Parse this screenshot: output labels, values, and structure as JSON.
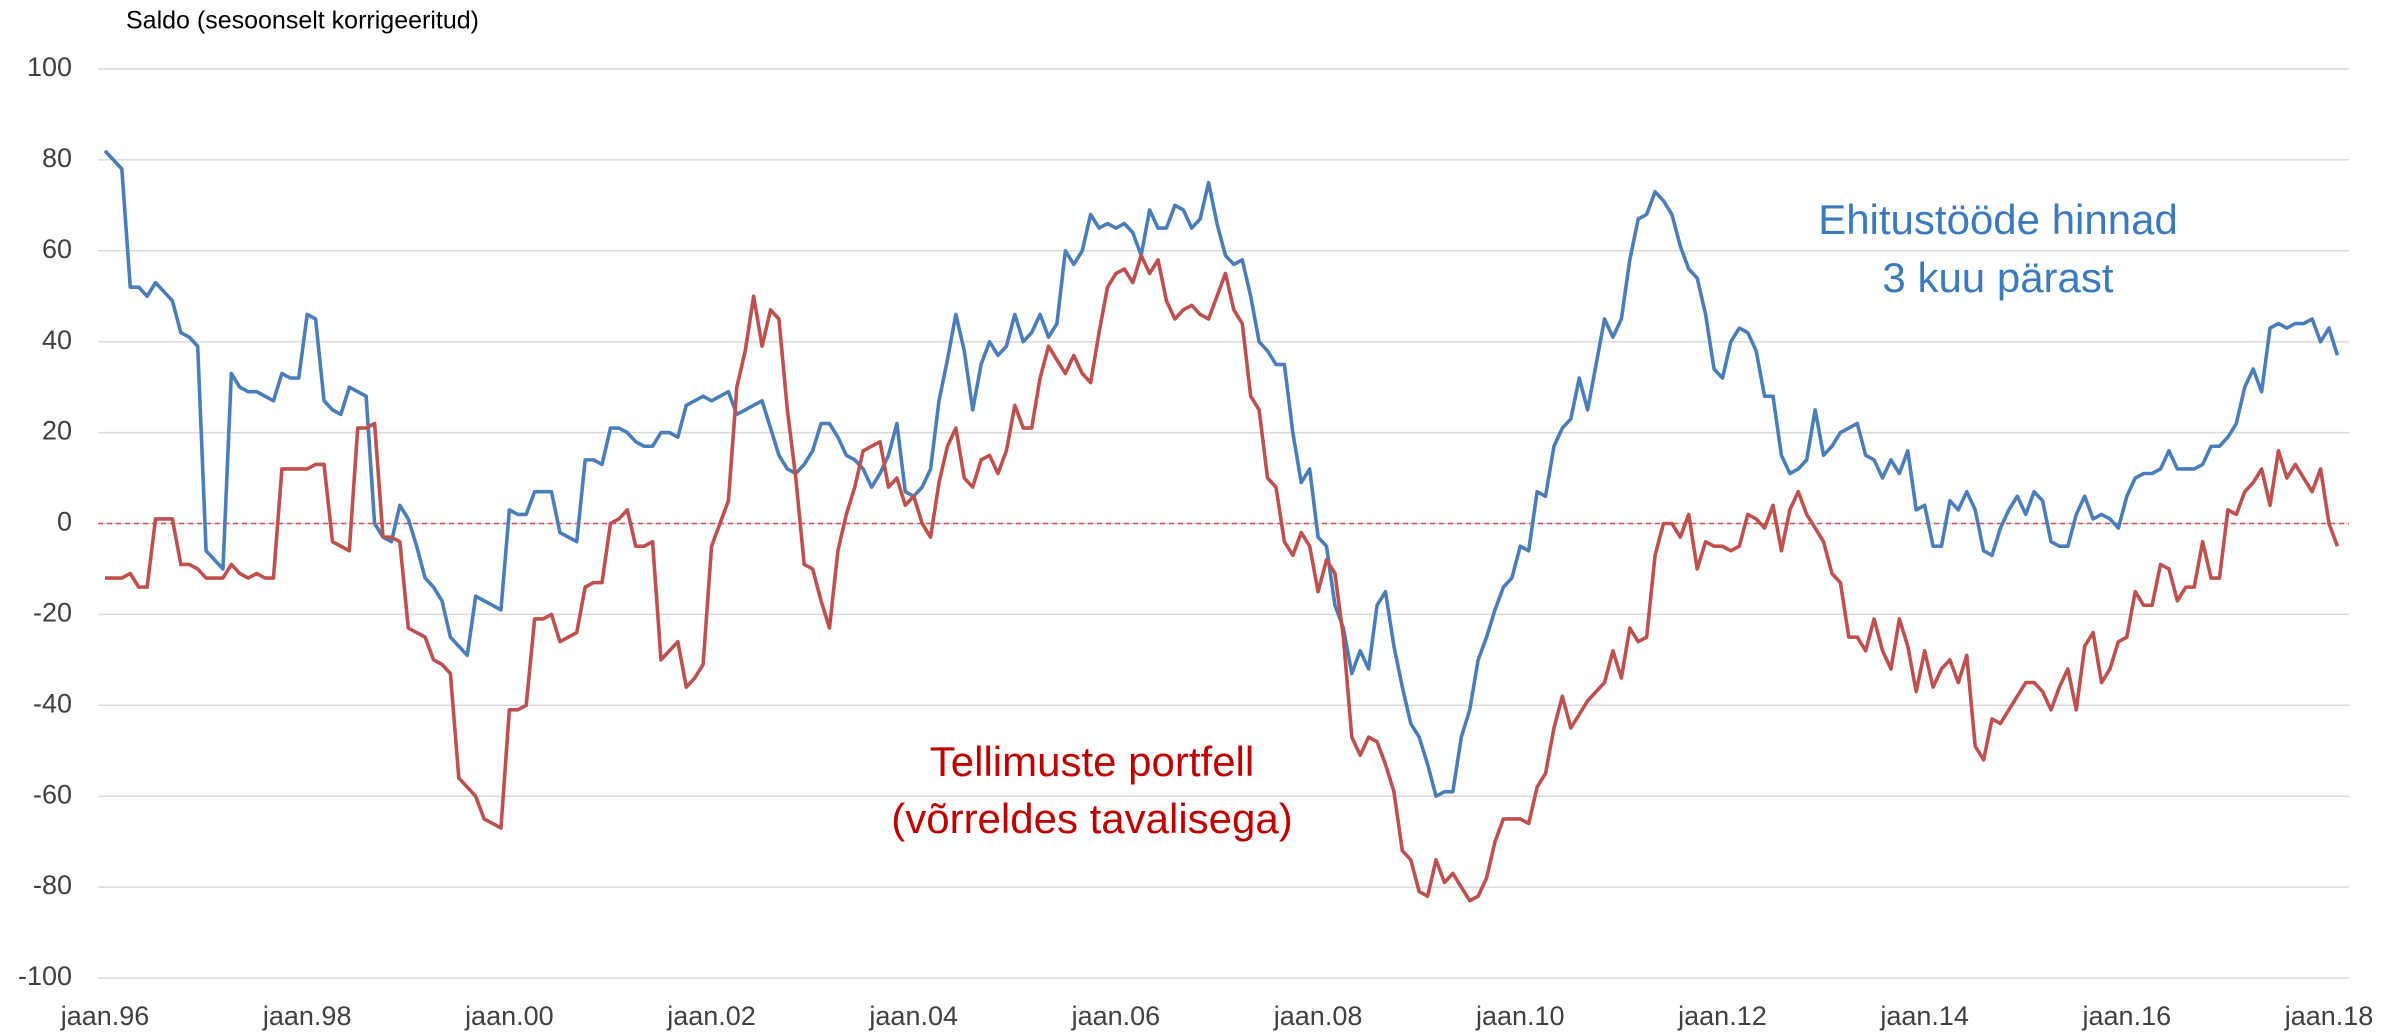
{
  "chart_data": {
    "type": "line",
    "y_label": "Saldo (sesoonselt korrigeeritud)",
    "categories": [
      "jaan.96",
      null,
      null,
      null,
      null,
      null,
      null,
      null,
      null,
      null,
      null,
      null,
      null,
      null,
      null,
      null,
      null,
      null,
      null,
      null,
      null,
      null,
      null,
      null,
      "jaan.98",
      null,
      null,
      null,
      null,
      null,
      null,
      null,
      null,
      null,
      null,
      null,
      null,
      null,
      null,
      null,
      null,
      null,
      null,
      null,
      null,
      null,
      null,
      null,
      "jaan.00",
      null,
      null,
      null,
      null,
      null,
      null,
      null,
      null,
      null,
      null,
      null,
      null,
      null,
      null,
      null,
      null,
      null,
      null,
      null,
      null,
      null,
      null,
      null,
      "jaan.02",
      null,
      null,
      null,
      null,
      null,
      null,
      null,
      null,
      null,
      null,
      null,
      null,
      null,
      null,
      null,
      null,
      null,
      null,
      null,
      null,
      null,
      null,
      null,
      "jaan.04",
      null,
      null,
      null,
      null,
      null,
      null,
      null,
      null,
      null,
      null,
      null,
      null,
      null,
      null,
      null,
      null,
      null,
      null,
      null,
      null,
      null,
      null,
      null,
      "jaan.06",
      null,
      null,
      null,
      null,
      null,
      null,
      null,
      null,
      null,
      null,
      null,
      null,
      null,
      null,
      null,
      null,
      null,
      null,
      null,
      null,
      null,
      null,
      null,
      "jaan.08",
      null,
      null,
      null,
      null,
      null,
      null,
      null,
      null,
      null,
      null,
      null,
      null,
      null,
      null,
      null,
      null,
      null,
      null,
      null,
      null,
      null,
      null,
      null,
      "jaan.10",
      null,
      null,
      null,
      null,
      null,
      null,
      null,
      null,
      null,
      null,
      null,
      null,
      null,
      null,
      null,
      null,
      null,
      null,
      null,
      null,
      null,
      null,
      null,
      "jaan.12",
      null,
      null,
      null,
      null,
      null,
      null,
      null,
      null,
      null,
      null,
      null,
      null,
      null,
      null,
      null,
      null,
      null,
      null,
      null,
      null,
      null,
      null,
      null,
      "jaan.14",
      null,
      null,
      null,
      null,
      null,
      null,
      null,
      null,
      null,
      null,
      null,
      null,
      null,
      null,
      null,
      null,
      null,
      null,
      null,
      null,
      null,
      null,
      null,
      "jaan.16",
      null,
      null,
      null,
      null,
      null,
      null,
      null,
      null,
      null,
      null,
      null,
      null,
      null,
      null,
      null,
      null,
      null,
      null,
      null,
      null,
      null,
      null,
      null,
      "jaan.18",
      null
    ],
    "series": [
      {
        "color": "#4a7ebb",
        "values": [
          82,
          80,
          78,
          52,
          52,
          50,
          53,
          51,
          49,
          42,
          41,
          39,
          -6,
          -8,
          -10,
          33,
          30,
          29,
          29,
          28,
          27,
          33,
          32,
          32,
          46,
          45,
          27,
          25,
          24,
          30,
          29,
          28,
          0,
          -3,
          -4,
          4,
          1,
          -5,
          -12,
          -14,
          -17,
          -25,
          -27,
          -29,
          -16,
          -17,
          -18,
          -19,
          3,
          2,
          2,
          7,
          7,
          7,
          -2,
          -3,
          -4,
          14,
          14,
          13,
          21,
          21,
          20,
          18,
          17,
          17,
          20,
          20,
          19,
          26,
          27,
          28,
          27,
          28,
          29,
          24,
          25,
          26,
          27,
          21,
          15,
          12,
          11,
          13,
          16,
          22,
          22,
          19,
          15,
          14,
          12,
          8,
          11,
          15,
          22,
          7,
          6,
          8,
          12,
          27,
          36,
          46,
          38,
          25,
          35,
          40,
          37,
          39,
          46,
          40,
          42,
          46,
          41,
          44,
          60,
          57,
          60,
          68,
          65,
          66,
          65,
          66,
          64,
          59,
          69,
          65,
          65,
          70,
          69,
          65,
          67,
          75,
          66,
          59,
          57,
          58,
          50,
          40,
          38,
          35,
          35,
          20,
          9,
          12,
          -3,
          -5,
          -18,
          -23,
          -33,
          -28,
          -32,
          -18,
          -15,
          -27,
          -36,
          -44,
          -47,
          -53,
          -60,
          -59,
          -59,
          -47,
          -41,
          -30,
          -25,
          -19,
          -14,
          -12,
          -5,
          -6,
          7,
          6,
          17,
          21,
          23,
          32,
          25,
          35,
          45,
          41,
          45,
          58,
          67,
          68,
          73,
          71,
          68,
          61,
          56,
          54,
          46,
          34,
          32,
          40,
          43,
          42,
          38,
          28,
          28,
          15,
          11,
          12,
          14,
          25,
          15,
          17,
          20,
          21,
          22,
          15,
          14,
          10,
          14,
          11,
          16,
          3,
          4,
          -5,
          -5,
          5,
          3,
          7,
          3,
          -6,
          -7,
          -1,
          3,
          6,
          2,
          7,
          5,
          -4,
          -5,
          -5,
          2,
          6,
          1,
          2,
          1,
          -1,
          6,
          10,
          11,
          11,
          12,
          16,
          12,
          12,
          12,
          13,
          17,
          17,
          19,
          22,
          30,
          34,
          29,
          43,
          44,
          43,
          44,
          44,
          45,
          40,
          43,
          37
        ]
      },
      {
        "color": "#c0504d",
        "values": [
          -12,
          -12,
          -12,
          -11,
          -14,
          -14,
          1,
          1,
          1,
          -9,
          -9,
          -10,
          -12,
          -12,
          -12,
          -9,
          -11,
          -12,
          -11,
          -12,
          -12,
          12,
          12,
          12,
          12,
          13,
          13,
          -4,
          -5,
          -6,
          21,
          21,
          22,
          -3,
          -3,
          -4,
          -23,
          -24,
          -25,
          -30,
          -31,
          -33,
          -56,
          -58,
          -60,
          -65,
          -66,
          -67,
          -41,
          -41,
          -40,
          -21,
          -21,
          -20,
          -26,
          -25,
          -24,
          -14,
          -13,
          -13,
          0,
          1,
          3,
          -5,
          -5,
          -4,
          -30,
          -28,
          -26,
          -36,
          -34,
          -31,
          -5,
          0,
          5,
          30,
          38,
          50,
          39,
          47,
          45,
          25,
          10,
          -9,
          -10,
          -17,
          -23,
          -6,
          2,
          8,
          16,
          17,
          18,
          8,
          10,
          4,
          6,
          0,
          -3,
          9,
          17,
          21,
          10,
          8,
          14,
          15,
          11,
          16,
          26,
          21,
          21,
          32,
          39,
          36,
          33,
          37,
          33,
          31,
          42,
          52,
          55,
          56,
          53,
          59,
          55,
          58,
          49,
          45,
          47,
          48,
          46,
          45,
          50,
          55,
          47,
          44,
          28,
          25,
          10,
          8,
          -4,
          -7,
          -2,
          -5,
          -15,
          -8,
          -11,
          -25,
          -47,
          -51,
          -47,
          -48,
          -53,
          -59,
          -72,
          -74,
          -81,
          -82,
          -74,
          -79,
          -77,
          -80,
          -83,
          -82,
          -78,
          -70,
          -65,
          -65,
          -65,
          -66,
          -58,
          -55,
          -45,
          -38,
          -45,
          -42,
          -39,
          -37,
          -35,
          -28,
          -34,
          -23,
          -26,
          -25,
          -7,
          0,
          0,
          -3,
          2,
          -10,
          -4,
          -5,
          -5,
          -6,
          -5,
          2,
          1,
          -1,
          4,
          -6,
          3,
          7,
          2,
          -1,
          -4,
          -11,
          -13,
          -25,
          -25,
          -28,
          -21,
          -28,
          -32,
          -21,
          -27,
          -37,
          -28,
          -36,
          -32,
          -30,
          -35,
          -29,
          -49,
          -52,
          -43,
          -44,
          -41,
          -38,
          -35,
          -35,
          -37,
          -41,
          -36,
          -32,
          -41,
          -27,
          -24,
          -35,
          -32,
          -26,
          -25,
          -15,
          -18,
          -18,
          -9,
          -10,
          -17,
          -14,
          -14,
          -4,
          -12,
          -12,
          3,
          2,
          7,
          9,
          12,
          4,
          16,
          10,
          13,
          10,
          7,
          12,
          0,
          -5
        ]
      }
    ],
    "annotations": [
      {
        "text": "Ehitustööde hinnad",
        "color": "#3a7abf"
      },
      {
        "text": "3 kuu pärast",
        "color": "#3a7abf"
      },
      {
        "text": "Tellimuste portfell",
        "color": "#c00000"
      },
      {
        "text": "(võrreldes tavalisega)",
        "color": "#c00000"
      }
    ],
    "ylim": [
      -100,
      100
    ],
    "yticks": [
      -100,
      -80,
      -60,
      -40,
      -20,
      0,
      20,
      40,
      60,
      80,
      100
    ],
    "grid": true,
    "zero_line": {
      "color": "#e05050",
      "style": "dashed"
    }
  }
}
